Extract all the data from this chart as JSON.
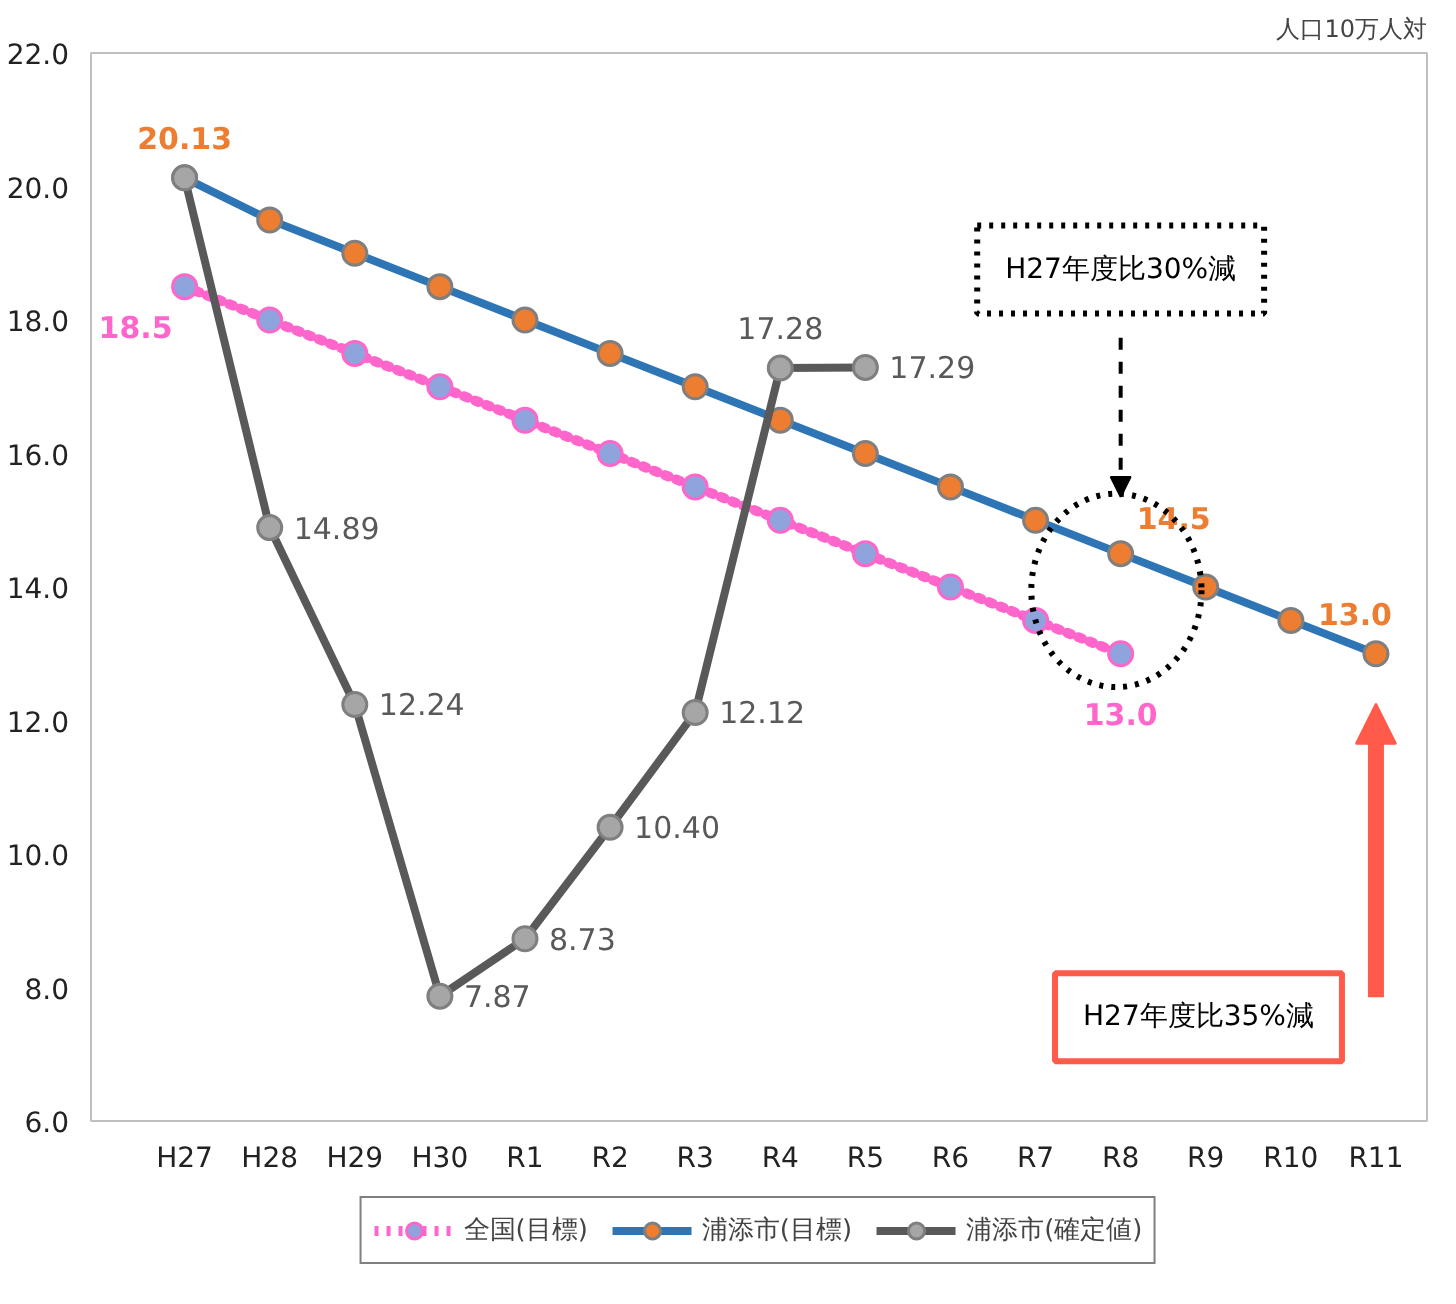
{
  "chart_data": {
    "type": "line",
    "title": "人口10万人対",
    "categories": [
      "H27",
      "H28",
      "H29",
      "H30",
      "R1",
      "R2",
      "R3",
      "R4",
      "R5",
      "R6",
      "R7",
      "R8",
      "R9",
      "R10",
      "R11"
    ],
    "series": [
      {
        "name": "全国(目標)",
        "color": "#ff66cc",
        "line_style": "dotted",
        "values": [
          18.5,
          18.0,
          17.5,
          17.0,
          16.5,
          16.0,
          15.5,
          15.0,
          14.5,
          14.0,
          13.5,
          13.0,
          null,
          null,
          null
        ],
        "value_labels": [
          "18.5",
          null,
          null,
          null,
          null,
          null,
          null,
          null,
          null,
          null,
          null,
          "13.0",
          null,
          null,
          null
        ]
      },
      {
        "name": "浦添市(目標)",
        "color": "#2e75b6",
        "line_style": "solid",
        "values": [
          20.13,
          19.5,
          19.0,
          18.5,
          18.0,
          17.5,
          17.0,
          16.5,
          16.0,
          15.5,
          15.0,
          14.5,
          14.0,
          13.5,
          13.0
        ],
        "value_labels": [
          "20.13",
          null,
          null,
          null,
          null,
          null,
          null,
          null,
          null,
          null,
          null,
          "14.5",
          null,
          null,
          "13.0"
        ]
      },
      {
        "name": "浦添市(確定値)",
        "color": "#595959",
        "line_style": "solid",
        "values": [
          20.13,
          14.89,
          12.24,
          7.87,
          8.73,
          10.4,
          12.12,
          17.28,
          17.29,
          null,
          null,
          null,
          null,
          null,
          null
        ],
        "value_labels": [
          null,
          "14.89",
          "12.24",
          "7.87",
          "8.73",
          "10.40",
          "12.12",
          "17.28",
          "17.29",
          null,
          null,
          null,
          null,
          null,
          null
        ]
      }
    ],
    "annotations": [
      "H27年度比30%減",
      "H27年度比35%減"
    ],
    "ylim": [
      6,
      22
    ],
    "yticks": [
      {
        "value": 6,
        "label": "6.0"
      },
      {
        "value": 8,
        "label": "8.0"
      },
      {
        "value": 10,
        "label": "10.0"
      },
      {
        "value": 12,
        "label": "12.0"
      },
      {
        "value": 14,
        "label": "14.0"
      },
      {
        "value": 16,
        "label": "16.0"
      },
      {
        "value": 18,
        "label": "18.0"
      },
      {
        "value": 20,
        "label": "20.0"
      },
      {
        "value": 22,
        "label": "22.0"
      }
    ],
    "grid": false,
    "marker": "circle",
    "legend": "bottom"
  }
}
